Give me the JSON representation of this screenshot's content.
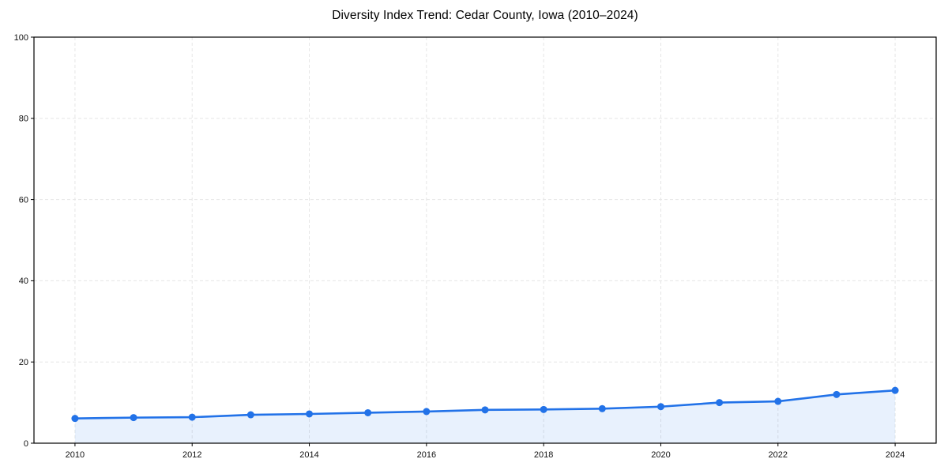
{
  "page": {
    "background_color": "#ffffff"
  },
  "chart_data": {
    "type": "line",
    "title": "Diversity Index Trend: Cedar County, Iowa (2010–2024)",
    "xlabel": "",
    "ylabel": "",
    "x": [
      2010,
      2011,
      2012,
      2013,
      2014,
      2015,
      2016,
      2017,
      2018,
      2019,
      2020,
      2021,
      2022,
      2023,
      2024
    ],
    "series": [
      {
        "name": "Diversity Index",
        "values": [
          6.1,
          6.3,
          6.4,
          7.0,
          7.2,
          7.5,
          7.8,
          8.2,
          8.3,
          8.5,
          9.0,
          10.0,
          10.3,
          12.0,
          13.0
        ]
      }
    ],
    "xlim": [
      2009.3,
      2024.7
    ],
    "ylim": [
      0,
      100
    ],
    "xticks": [
      2010,
      2012,
      2014,
      2016,
      2018,
      2020,
      2022,
      2024
    ],
    "yticks": [
      0,
      20,
      40,
      60,
      80,
      100
    ],
    "grid": true,
    "grid_style": "dashed",
    "legend_position": "none",
    "marker": "circle",
    "area_fill": true,
    "colors": {
      "line": "#2272e8",
      "marker": "#2272e8",
      "area_fill": "rgba(34,114,232,0.10)",
      "grid": "#e6e6e6",
      "axis": "#000000",
      "tick_label": "#111111",
      "title": "#000000"
    }
  }
}
